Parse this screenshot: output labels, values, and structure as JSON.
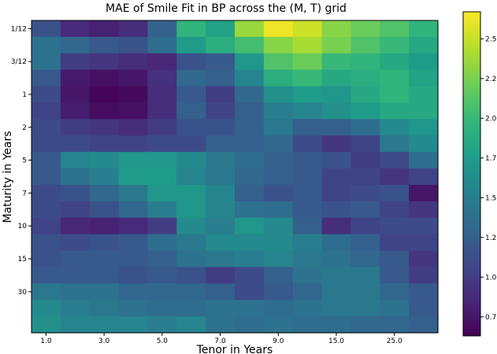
{
  "chart_data": {
    "type": "heatmap",
    "title": "MAE of Smile Fit in BP across the (M, T) grid",
    "xlabel": "Tenor in Years",
    "ylabel": "Maturity in Years",
    "x_tick_labels": [
      "1.0",
      "3.0",
      "5.0",
      "7.0",
      "9.0",
      "15.0",
      "25.0"
    ],
    "y_tick_labels": [
      "1/12",
      "3/12",
      "1",
      "2",
      "5",
      "7",
      "10",
      "15",
      "30"
    ],
    "colorbar_ticks": [
      0.75,
      1.0,
      1.25,
      1.5,
      1.75,
      2.0,
      2.25,
      2.5
    ],
    "colorbar_tick_labels": [
      "0.75",
      "1.00",
      "1.25",
      "1.50",
      "1.75",
      "2.00",
      "2.25",
      "2.50"
    ],
    "colormap": "viridis",
    "vmin": 0.63,
    "vmax": 2.67,
    "n_columns": 14,
    "n_rows": 19,
    "values": [
      [
        1.15,
        0.88,
        0.82,
        0.9,
        1.27,
        1.95,
        1.8,
        2.35,
        2.62,
        2.52,
        2.3,
        2.2,
        2.1,
        1.95
      ],
      [
        1.4,
        1.3,
        1.2,
        1.15,
        1.35,
        1.75,
        1.9,
        2.05,
        2.3,
        2.4,
        2.25,
        2.1,
        2.0,
        1.85
      ],
      [
        1.4,
        1.0,
        0.95,
        0.9,
        0.85,
        1.15,
        1.2,
        1.7,
        2.1,
        2.2,
        2.0,
        1.95,
        1.85,
        1.75
      ],
      [
        1.2,
        0.78,
        0.72,
        0.76,
        0.92,
        1.3,
        1.25,
        1.55,
        1.9,
        2.0,
        1.85,
        1.9,
        1.95,
        1.8
      ],
      [
        1.1,
        0.75,
        0.66,
        0.68,
        0.9,
        1.2,
        1.0,
        1.3,
        1.65,
        1.75,
        1.7,
        1.85,
        1.95,
        1.85
      ],
      [
        1.05,
        0.8,
        0.7,
        0.72,
        0.9,
        1.25,
        1.05,
        1.25,
        1.5,
        1.55,
        1.65,
        1.75,
        1.85,
        1.85
      ],
      [
        1.1,
        1.0,
        0.95,
        0.9,
        1.0,
        1.15,
        1.15,
        1.25,
        1.45,
        1.25,
        1.25,
        1.35,
        1.6,
        1.7
      ],
      [
        1.1,
        1.1,
        1.05,
        1.05,
        1.1,
        1.1,
        1.25,
        1.25,
        1.3,
        1.1,
        0.95,
        1.05,
        1.45,
        1.6
      ],
      [
        1.2,
        1.55,
        1.6,
        1.7,
        1.7,
        1.6,
        1.45,
        1.35,
        1.25,
        1.2,
        1.15,
        1.0,
        1.1,
        1.35
      ],
      [
        1.2,
        1.4,
        1.5,
        1.75,
        1.75,
        1.55,
        1.45,
        1.3,
        1.25,
        1.2,
        1.05,
        1.05,
        0.95,
        1.05
      ],
      [
        1.1,
        1.15,
        1.3,
        1.45,
        1.7,
        1.7,
        1.55,
        1.25,
        1.15,
        1.2,
        1.05,
        1.1,
        1.15,
        0.75
      ],
      [
        1.1,
        1.05,
        1.15,
        1.3,
        1.5,
        1.7,
        1.55,
        1.4,
        1.35,
        1.2,
        1.15,
        1.2,
        1.05,
        0.95
      ],
      [
        1.05,
        0.85,
        0.82,
        0.88,
        1.0,
        1.6,
        1.5,
        1.7,
        1.6,
        1.25,
        0.9,
        1.05,
        1.1,
        1.1
      ],
      [
        1.15,
        1.1,
        1.15,
        1.2,
        1.35,
        1.45,
        1.6,
        1.6,
        1.6,
        1.5,
        1.35,
        1.25,
        1.05,
        1.05
      ],
      [
        1.15,
        1.2,
        1.2,
        1.2,
        1.25,
        1.4,
        1.45,
        1.5,
        1.55,
        1.45,
        1.4,
        1.3,
        1.2,
        0.95
      ],
      [
        1.2,
        1.2,
        1.2,
        1.15,
        1.2,
        1.15,
        1.0,
        1.1,
        1.25,
        1.4,
        1.45,
        1.45,
        1.2,
        1.0
      ],
      [
        1.45,
        1.4,
        1.4,
        1.3,
        1.3,
        1.3,
        1.25,
        1.1,
        1.2,
        1.3,
        1.45,
        1.45,
        1.3,
        1.2
      ],
      [
        1.6,
        1.5,
        1.45,
        1.4,
        1.35,
        1.35,
        1.4,
        1.4,
        1.35,
        1.4,
        1.45,
        1.45,
        1.4,
        1.2
      ],
      [
        1.65,
        1.55,
        1.55,
        1.55,
        1.5,
        1.55,
        1.4,
        1.35,
        1.4,
        1.35,
        1.35,
        1.3,
        1.3,
        1.25
      ]
    ]
  }
}
